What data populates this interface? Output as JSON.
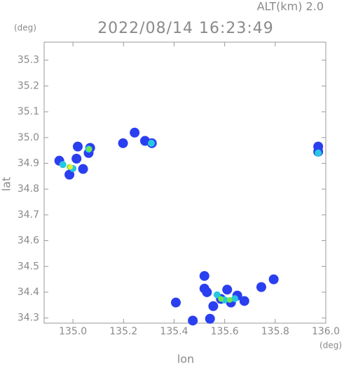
{
  "chart_data": {
    "type": "scatter",
    "title": "2022/08/14 16:23:49",
    "altitude_label": "ALT(km)  2.0",
    "y_unit": "(deg)",
    "x_unit": "(deg)",
    "x_label": "lon",
    "y_label": "lat",
    "xlim": [
      134.886,
      136.0
    ],
    "ylim": [
      34.28,
      35.37
    ],
    "xticks": [
      {
        "value": 135.0,
        "label": "135.0"
      },
      {
        "value": 135.2,
        "label": "135.2"
      },
      {
        "value": 135.4,
        "label": "135.4"
      },
      {
        "value": 135.6,
        "label": "135.6"
      },
      {
        "value": 135.8,
        "label": "135.8"
      },
      {
        "value": 136.0,
        "label": "136.0"
      }
    ],
    "yticks": [
      {
        "value": 34.3,
        "label": "34.3"
      },
      34.4,
      34.5,
      34.6,
      34.7,
      34.8,
      34.9,
      {
        "value": 35.0,
        "label": "35.0"
      },
      35.1,
      35.2,
      35.3
    ],
    "series": [
      {
        "color": "#2a3ff0",
        "x": [
          134.946,
          135.014,
          135.04,
          134.986,
          135.019,
          135.068,
          135.062,
          135.198,
          135.244,
          135.285,
          135.312,
          135.97,
          135.53,
          135.585,
          135.625,
          135.65,
          135.678,
          135.555,
          135.61,
          135.52,
          135.407,
          135.474,
          135.542,
          135.52,
          135.745,
          135.794,
          135.97
        ],
        "y": [
          34.91,
          34.918,
          34.878,
          34.856,
          34.965,
          34.96,
          34.94,
          34.978,
          35.019,
          34.987,
          34.978,
          34.945,
          34.4,
          34.374,
          34.36,
          34.387,
          34.366,
          34.346,
          34.41,
          34.414,
          34.36,
          34.29,
          34.297,
          34.463,
          34.42,
          34.45,
          34.965
        ]
      },
      {
        "color": "#28c8e0",
        "x": [
          134.96,
          135.0,
          135.062,
          135.31,
          135.57,
          135.6,
          135.64,
          135.97
        ],
        "y": [
          34.895,
          34.88,
          34.955,
          34.978,
          34.39,
          34.37,
          34.375,
          34.94
        ]
      },
      {
        "color": "#6ee650",
        "x": [
          134.986,
          135.065,
          135.585,
          135.62
        ],
        "y": [
          34.886,
          34.955,
          34.374,
          34.37
        ]
      },
      {
        "color": "#e8ee30",
        "x": [
          134.99
        ],
        "y": [
          34.886
        ]
      }
    ]
  }
}
